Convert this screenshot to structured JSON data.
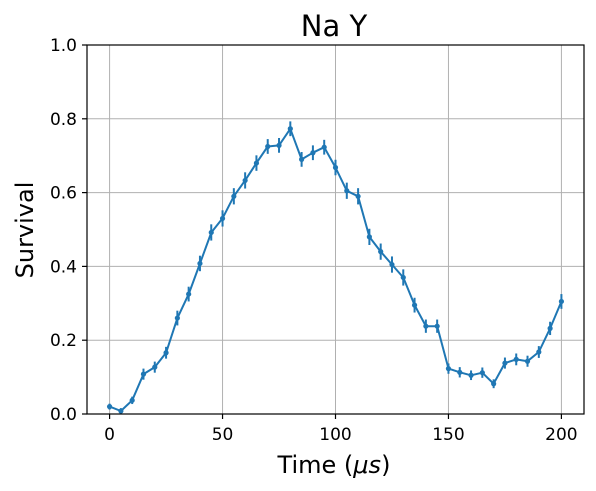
{
  "chart_data": {
    "type": "line",
    "title": "Na Y",
    "xlabel_prefix": "Time (",
    "xlabel_unit": "μs",
    "xlabel_suffix": ")",
    "ylabel": "Survival",
    "xlim": [
      -10,
      210
    ],
    "ylim": [
      0.0,
      1.0
    ],
    "xticks": [
      0,
      50,
      100,
      150,
      200
    ],
    "yticks": [
      0.0,
      0.2,
      0.4,
      0.6,
      0.8,
      1.0
    ],
    "xtick_labels": [
      "0",
      "50",
      "100",
      "150",
      "200"
    ],
    "ytick_labels": [
      "0.0",
      "0.2",
      "0.4",
      "0.6",
      "0.8",
      "1.0"
    ],
    "grid": true,
    "color": "#1f77b4",
    "series": [
      {
        "x": [
          0,
          5,
          10,
          15,
          20,
          25,
          30,
          35,
          40,
          45,
          50,
          55,
          60,
          65,
          70,
          75,
          80,
          85,
          90,
          95,
          100,
          105,
          110,
          115,
          120,
          125,
          130,
          135,
          140,
          145,
          150,
          155,
          160,
          165,
          170,
          175,
          180,
          185,
          190,
          195,
          200
        ],
        "y": [
          0.02,
          0.008,
          0.037,
          0.108,
          0.127,
          0.166,
          0.26,
          0.325,
          0.408,
          0.492,
          0.53,
          0.59,
          0.633,
          0.68,
          0.725,
          0.728,
          0.773,
          0.69,
          0.708,
          0.723,
          0.668,
          0.605,
          0.59,
          0.48,
          0.44,
          0.405,
          0.37,
          0.295,
          0.238,
          0.238,
          0.123,
          0.113,
          0.105,
          0.112,
          0.082,
          0.138,
          0.148,
          0.143,
          0.168,
          0.232,
          0.305
        ],
        "yerr": [
          0.008,
          0.008,
          0.01,
          0.015,
          0.015,
          0.016,
          0.02,
          0.02,
          0.021,
          0.022,
          0.022,
          0.022,
          0.022,
          0.021,
          0.02,
          0.02,
          0.02,
          0.02,
          0.02,
          0.02,
          0.021,
          0.022,
          0.022,
          0.022,
          0.022,
          0.022,
          0.022,
          0.02,
          0.018,
          0.018,
          0.014,
          0.014,
          0.013,
          0.014,
          0.012,
          0.015,
          0.016,
          0.015,
          0.016,
          0.018,
          0.02
        ]
      }
    ]
  }
}
